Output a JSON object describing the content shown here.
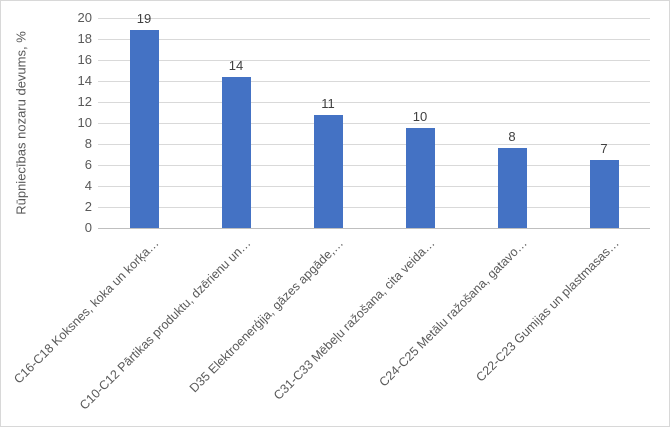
{
  "chart_data": {
    "type": "bar",
    "title": "",
    "xlabel": "",
    "ylabel": "Rūpniecības nozaru devums, %",
    "categories": [
      "C16-C18 Koksnes, koka un korķa…",
      "C10-C12 Pārtikas produktu, dzērienu un…",
      "D35 Elektroenerģija, gāzes apgāde,…",
      "C31-C33 Mēbeļu ražošana, cita veida…",
      "C24-C25 Metālu ražošana, gatavo…",
      "C22-C23 Gumijas un plastmasas…"
    ],
    "values": [
      19,
      14,
      11,
      10,
      8,
      7
    ],
    "data_labels": [
      "19",
      "14",
      "11",
      "10",
      "8",
      "7"
    ],
    "bar_values_precise": [
      18.9,
      14.4,
      10.8,
      9.5,
      7.6,
      6.5
    ],
    "ylim": [
      0,
      20
    ],
    "ytick_step": 2,
    "yticks": [
      0,
      2,
      4,
      6,
      8,
      10,
      12,
      14,
      16,
      18,
      20
    ],
    "grid": true,
    "legend": "none",
    "x_label_rotation_deg": 45,
    "colors": {
      "bar": "#4472C4",
      "gridline": "#D9D9D9",
      "axis_line": "#BFBFBF",
      "tick_label": "#595959",
      "data_label": "#404040",
      "frame_border": "#D8D8D8"
    }
  }
}
